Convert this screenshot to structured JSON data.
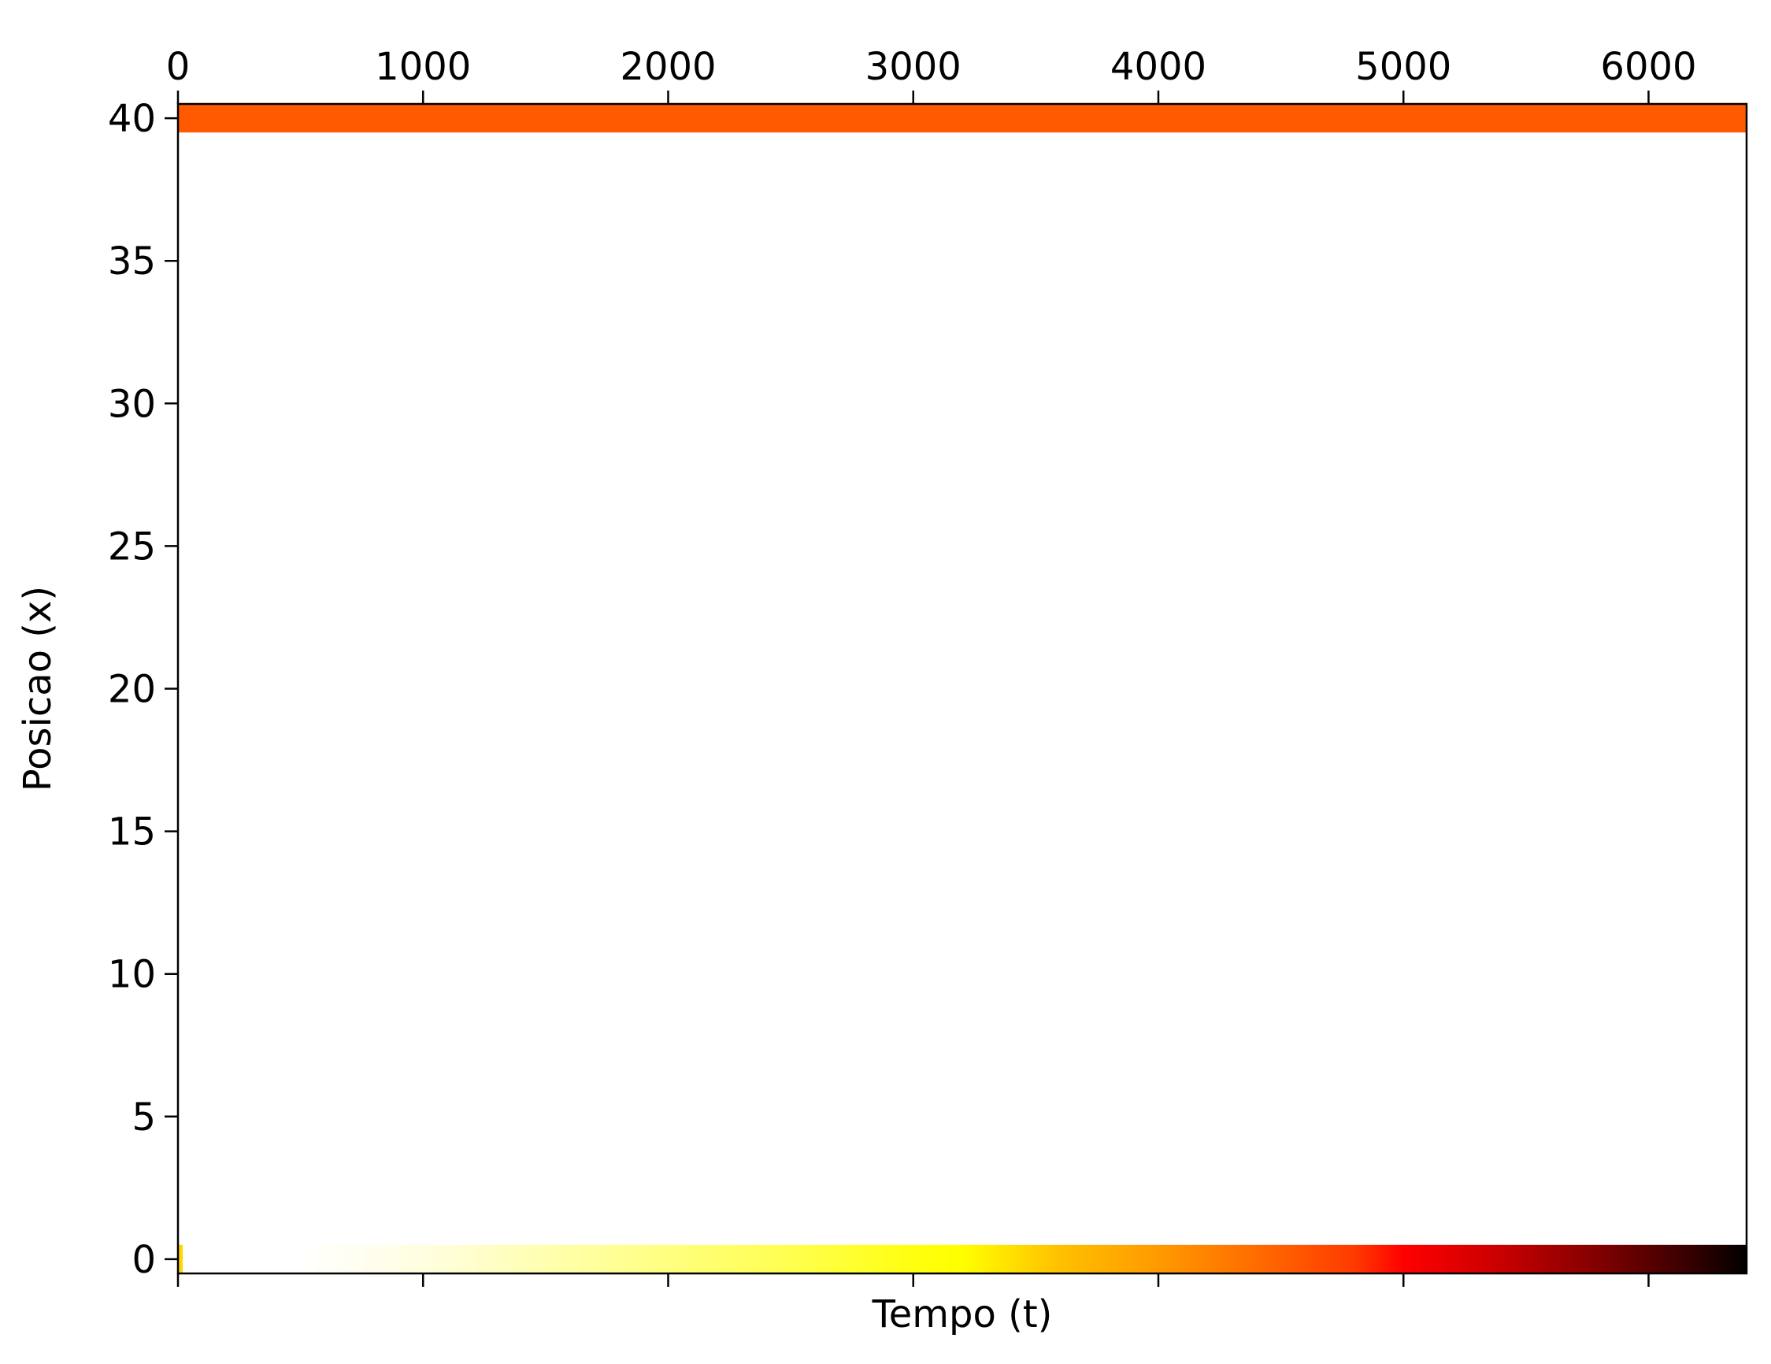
{
  "chart_data": {
    "type": "heatmap",
    "title": "",
    "xlabel": "Tempo (t)",
    "ylabel": "Posicao (x)",
    "xlim": [
      0,
      6400
    ],
    "ylim": [
      -0.5,
      40.5
    ],
    "x_ticks": [
      0,
      1000,
      2000,
      3000,
      4000,
      5000,
      6000
    ],
    "x_tick_labels": [
      "0",
      "1000",
      "2000",
      "3000",
      "4000",
      "5000",
      "6000"
    ],
    "y_ticks": [
      0,
      5,
      10,
      15,
      20,
      25,
      30,
      35,
      40
    ],
    "y_tick_labels": [
      "0",
      "5",
      "10",
      "15",
      "20",
      "25",
      "30",
      "35",
      "40"
    ],
    "x_ticklabels_position": "top",
    "colormap": "hot_r",
    "colormap_stops": [
      "#ffffff",
      "#ffff00",
      "#ff0000",
      "#000000"
    ],
    "grid": false,
    "rows": [
      {
        "position": 40,
        "uniform_color": "#ff5a00"
      },
      {
        "position": 0,
        "gradient_along_time": [
          {
            "t": 0,
            "color": "#ffffff"
          },
          {
            "t": 500,
            "color": "#ffffff"
          },
          {
            "t": 1000,
            "color": "#fffee0"
          },
          {
            "t": 1500,
            "color": "#ffffb0"
          },
          {
            "t": 2000,
            "color": "#ffff80"
          },
          {
            "t": 2500,
            "color": "#ffff50"
          },
          {
            "t": 3000,
            "color": "#ffff10"
          },
          {
            "t": 3200,
            "color": "#ffff00"
          },
          {
            "t": 3600,
            "color": "#ffc000"
          },
          {
            "t": 4000,
            "color": "#ff9a00"
          },
          {
            "t": 4400,
            "color": "#ff6c00"
          },
          {
            "t": 4800,
            "color": "#ff3a00"
          },
          {
            "t": 5000,
            "color": "#ff0000"
          },
          {
            "t": 5400,
            "color": "#c80000"
          },
          {
            "t": 5800,
            "color": "#800000"
          },
          {
            "t": 6200,
            "color": "#300000"
          },
          {
            "t": 6400,
            "color": "#000000"
          }
        ]
      }
    ],
    "first_column": [
      {
        "position": 0,
        "color": "#ffd700"
      }
    ]
  }
}
